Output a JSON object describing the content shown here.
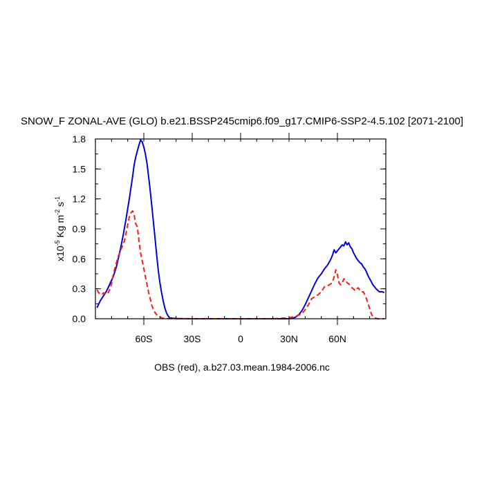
{
  "chart_data": {
    "type": "line",
    "title": "SNOW_F ZONAL-AVE (GLO) b.e21.BSSP245cmip6.f09_g17.CMIP6-SSP2-4.5.102 [2071-2100]",
    "xlabel": "OBS (red), a.b27.03.mean.1984-2006.nc",
    "ylabel": {
      "prefix": "x10",
      "exp": "-5",
      "units": " Kg m",
      "exp2": "-2",
      "units2": " s",
      "exp3": "-1"
    },
    "xlim": [
      -90,
      90
    ],
    "ylim": [
      0,
      1.8
    ],
    "x_ticks": [
      {
        "value": -60,
        "label": "60S"
      },
      {
        "value": -30,
        "label": "30S"
      },
      {
        "value": 0,
        "label": "0"
      },
      {
        "value": 30,
        "label": "30N"
      },
      {
        "value": 60,
        "label": "60N"
      }
    ],
    "y_ticks": [
      {
        "value": 0,
        "label": "0.0"
      },
      {
        "value": 0.3,
        "label": "0.3"
      },
      {
        "value": 0.6,
        "label": "0.6"
      },
      {
        "value": 0.9,
        "label": "0.9"
      },
      {
        "value": 1.2,
        "label": "1.2"
      },
      {
        "value": 1.5,
        "label": "1.5"
      },
      {
        "value": 1.8,
        "label": "1.8"
      }
    ],
    "series": [
      {
        "style": "solid",
        "color": "#0000dd",
        "x": [
          -89,
          -87,
          -85,
          -83,
          -81,
          -79,
          -77,
          -75,
          -73,
          -71,
          -69,
          -67,
          -66,
          -65,
          -64,
          -63,
          -62,
          -61,
          -60,
          -59,
          -58,
          -57,
          -56,
          -55,
          -54,
          -53,
          -52,
          -51,
          -50,
          -49,
          -48,
          -47,
          -46,
          -45,
          -44,
          -42,
          -40,
          -35,
          -30,
          -20,
          -10,
          0,
          10,
          20,
          30,
          32,
          34,
          36,
          38,
          40,
          42,
          44,
          46,
          48,
          50,
          52,
          54,
          56,
          57,
          58,
          59,
          60,
          61,
          62,
          63,
          64,
          65,
          66,
          67,
          68,
          69,
          70,
          71,
          72,
          73,
          74,
          75,
          76,
          77,
          78,
          79,
          80,
          82,
          84,
          86,
          88,
          89
        ],
        "y": [
          0.11,
          0.18,
          0.23,
          0.28,
          0.35,
          0.42,
          0.52,
          0.66,
          0.82,
          1.0,
          1.2,
          1.42,
          1.54,
          1.62,
          1.68,
          1.74,
          1.79,
          1.77,
          1.72,
          1.65,
          1.55,
          1.42,
          1.28,
          1.12,
          0.96,
          0.8,
          0.63,
          0.48,
          0.36,
          0.26,
          0.18,
          0.11,
          0.06,
          0.03,
          0.01,
          0.005,
          0.003,
          0.001,
          0.0,
          0.0,
          0.0,
          0.0,
          0.0,
          0.0,
          0.0,
          0.005,
          0.015,
          0.04,
          0.08,
          0.14,
          0.21,
          0.28,
          0.35,
          0.41,
          0.45,
          0.5,
          0.54,
          0.6,
          0.64,
          0.69,
          0.66,
          0.68,
          0.7,
          0.72,
          0.74,
          0.73,
          0.77,
          0.74,
          0.76,
          0.72,
          0.7,
          0.66,
          0.63,
          0.6,
          0.58,
          0.56,
          0.55,
          0.52,
          0.5,
          0.47,
          0.43,
          0.4,
          0.34,
          0.3,
          0.27,
          0.27,
          0.26
        ]
      },
      {
        "style": "dashed",
        "color": "#ff1a1a",
        "x": [
          -89,
          -88,
          -87,
          -86,
          -85,
          -84,
          -83,
          -82,
          -81,
          -80,
          -79,
          -78,
          -77,
          -76,
          -75,
          -74,
          -73,
          -72,
          -71,
          -70,
          -69,
          -68,
          -67,
          -66,
          -65,
          -64,
          -63,
          -62,
          -61,
          -60,
          -59,
          -58,
          -57,
          -56,
          -55,
          -54,
          -53,
          -52,
          -51,
          -50,
          -49,
          -48,
          -47,
          -46,
          -45,
          -44,
          -42,
          -40,
          -35,
          -30,
          -20,
          -10,
          0,
          10,
          20,
          30,
          33,
          35,
          38,
          40,
          42,
          44,
          46,
          48,
          50,
          52,
          54,
          56,
          57,
          58,
          59,
          60,
          61,
          62,
          63,
          64,
          65,
          66,
          67,
          68,
          69,
          70,
          71,
          72,
          73,
          74,
          75,
          76,
          77,
          78,
          79,
          80,
          81,
          82,
          83,
          84,
          85,
          86,
          87,
          88,
          89
        ],
        "y": [
          0.29,
          0.26,
          0.25,
          0.24,
          0.26,
          0.25,
          0.27,
          0.26,
          0.3,
          0.35,
          0.44,
          0.5,
          0.56,
          0.62,
          0.66,
          0.7,
          0.74,
          0.78,
          0.86,
          0.94,
          1.02,
          1.06,
          1.08,
          1.04,
          0.95,
          0.92,
          0.78,
          0.66,
          0.58,
          0.5,
          0.42,
          0.34,
          0.26,
          0.2,
          0.13,
          0.09,
          0.06,
          0.04,
          0.03,
          0.02,
          0.01,
          0.005,
          0.004,
          0.003,
          0.002,
          0.002,
          0.001,
          0.001,
          0.0,
          0.0,
          0.0,
          0.0,
          0.0,
          0.0,
          0.0,
          0.01,
          0.02,
          0.03,
          0.05,
          0.09,
          0.14,
          0.2,
          0.22,
          0.24,
          0.27,
          0.32,
          0.33,
          0.35,
          0.37,
          0.42,
          0.49,
          0.44,
          0.36,
          0.34,
          0.36,
          0.4,
          0.39,
          0.36,
          0.35,
          0.33,
          0.31,
          0.3,
          0.28,
          0.3,
          0.31,
          0.28,
          0.27,
          0.27,
          0.24,
          0.2,
          0.15,
          0.1,
          0.05,
          0.02,
          0.01,
          0.005,
          0.0,
          0.0,
          0.0,
          0.0,
          0.0
        ]
      }
    ]
  }
}
